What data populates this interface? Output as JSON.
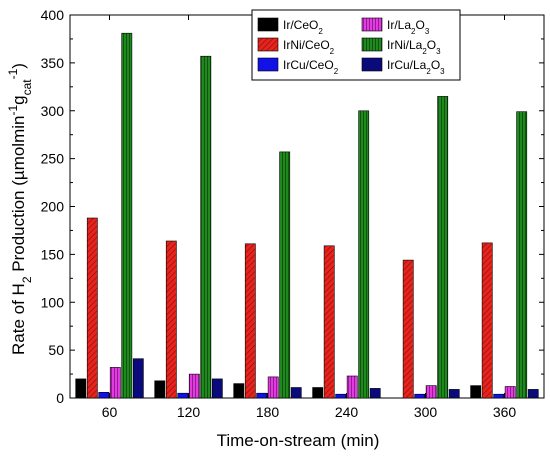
{
  "chart_data": {
    "type": "bar",
    "categories": [
      "60",
      "120",
      "180",
      "240",
      "300",
      "360"
    ],
    "xlabel": "Time-on-stream (min)",
    "ylabel": {
      "parts": [
        {
          "t": "Rate of H"
        },
        {
          "t": "2",
          "sub": true
        },
        {
          "t": " Production (µmolmin"
        },
        {
          "t": "-1",
          "sup": true
        },
        {
          "t": "g"
        },
        {
          "t": "cat",
          "sub": true
        },
        {
          "t": "-1",
          "sup": true
        },
        {
          "t": ")"
        }
      ]
    },
    "ylim": [
      0,
      400
    ],
    "yticks": [
      "0",
      "50",
      "100",
      "150",
      "200",
      "250",
      "300",
      "350",
      "400"
    ],
    "legend_position": "top-right",
    "series": [
      {
        "name": "Ir/CeO2",
        "label_parts": [
          {
            "t": "Ir/CeO"
          },
          {
            "t": "2",
            "sub": true
          }
        ],
        "color": "#000000",
        "pattern": "solid",
        "values": [
          20,
          18,
          15,
          11,
          0,
          13
        ]
      },
      {
        "name": "IrNi/CeO2",
        "label_parts": [
          {
            "t": "IrNi/CeO"
          },
          {
            "t": "2",
            "sub": true
          }
        ],
        "color": "#e8231c",
        "pattern": "hatch",
        "values": [
          188,
          164,
          161,
          159,
          144,
          162
        ]
      },
      {
        "name": "IrCu/CeO2",
        "label_parts": [
          {
            "t": "IrCu/CeO"
          },
          {
            "t": "2",
            "sub": true
          }
        ],
        "color": "#1212e6",
        "pattern": "solid",
        "values": [
          6,
          5,
          5,
          4,
          4,
          4
        ]
      },
      {
        "name": "Ir/La2O3",
        "label_parts": [
          {
            "t": "Ir/La"
          },
          {
            "t": "2",
            "sub": true
          },
          {
            "t": "O"
          },
          {
            "t": "3",
            "sub": true
          }
        ],
        "color": "#e23be2",
        "pattern": "vline",
        "values": [
          32,
          25,
          22,
          23,
          13,
          12
        ]
      },
      {
        "name": "IrNi/La2O3",
        "label_parts": [
          {
            "t": "IrNi/La"
          },
          {
            "t": "2",
            "sub": true
          },
          {
            "t": "O"
          },
          {
            "t": "3",
            "sub": true
          }
        ],
        "color": "#1e8a1e",
        "pattern": "vline",
        "values": [
          381,
          357,
          257,
          300,
          315,
          299
        ]
      },
      {
        "name": "IrCu/La2O3",
        "label_parts": [
          {
            "t": "IrCu/La"
          },
          {
            "t": "2",
            "sub": true
          },
          {
            "t": "O"
          },
          {
            "t": "3",
            "sub": true
          }
        ],
        "color": "#0a0a7a",
        "pattern": "solid",
        "values": [
          41,
          20,
          11,
          10,
          9,
          9
        ]
      }
    ]
  }
}
